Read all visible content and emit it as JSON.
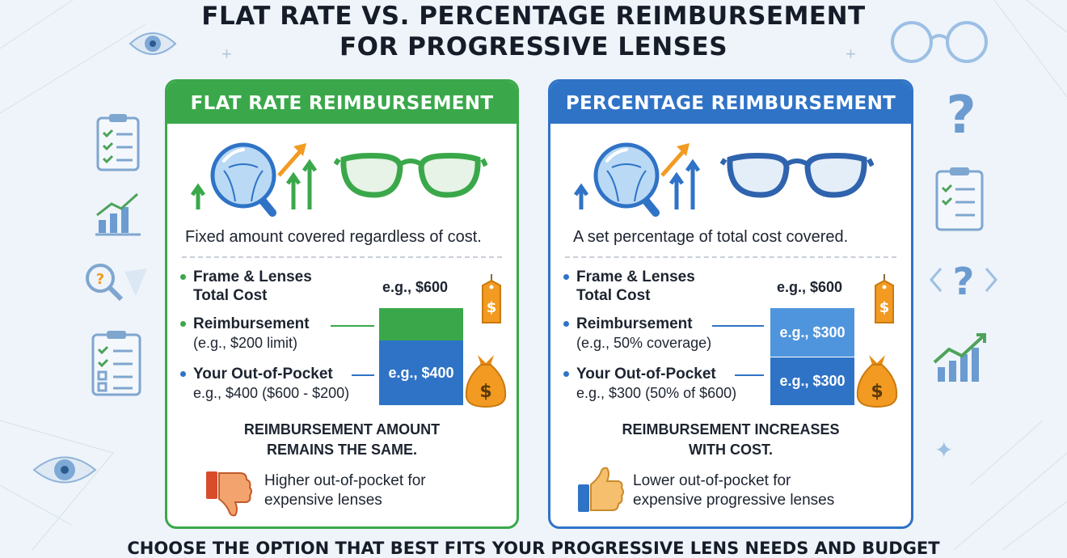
{
  "title": {
    "line1": "FLAT RATE VS. PERCENTAGE REIMBURSEMENT",
    "line2": "FOR PROGRESSIVE LENSES"
  },
  "colors": {
    "green": "#3aa84a",
    "blue": "#2f73c6",
    "accent_orange": "#f29a21"
  },
  "flat": {
    "header": "FLAT RATE REIMBURSEMENT",
    "description": "Fixed amount covered regardless of cost.",
    "items": [
      {
        "label1": "Frame & Lenses",
        "label2": "Total Cost"
      },
      {
        "label1": "Reimbursement",
        "label2": "(e.g., $200 limit)"
      },
      {
        "label1": "Your Out-of-Pocket",
        "label2": "e.g., $400 ($600 - $200)"
      }
    ],
    "total_value": "e.g., $600",
    "bar_out_of_pocket": "e.g., $400",
    "conclusion_line1": "REIMBURSEMENT AMOUNT",
    "conclusion_line2": "REMAINS THE SAME.",
    "note_line1": "Higher out-of-pocket for",
    "note_line2": "expensive lenses",
    "icons": [
      "magnifier-icon",
      "growth-arrows-icon",
      "glasses-icon",
      "price-tag-icon",
      "money-bag-icon",
      "thumbs-down-icon"
    ]
  },
  "percentage": {
    "header": "PERCENTAGE REIMBURSEMENT",
    "description": "A set percentage of total cost covered.",
    "items": [
      {
        "label1": "Frame & Lenses",
        "label2": "Total Cost"
      },
      {
        "label1": "Reimbursement",
        "label2": "(e.g., 50% coverage)"
      },
      {
        "label1": "Your Out-of-Pocket",
        "label2": "e.g., $300 (50% of $600)"
      }
    ],
    "total_value": "e.g., $600",
    "bar_reimbursement": "e.g., $300",
    "bar_out_of_pocket": "e.g., $300",
    "conclusion_line1": "REIMBURSEMENT INCREASES",
    "conclusion_line2": "WITH COST.",
    "note_line1": "Lower out-of-pocket for",
    "note_line2": "expensive progressive lenses",
    "icons": [
      "magnifier-icon",
      "growth-arrows-icon",
      "glasses-icon",
      "price-tag-icon",
      "money-bag-icon",
      "thumbs-up-icon"
    ]
  },
  "footer": "CHOOSE THE OPTION THAT BEST FITS YOUR PROGRESSIVE LENS NEEDS AND BUDGET",
  "price_symbol": "$",
  "decor_symbols": {
    "question": "?",
    "sparkle": "✦",
    "plus": "+"
  }
}
